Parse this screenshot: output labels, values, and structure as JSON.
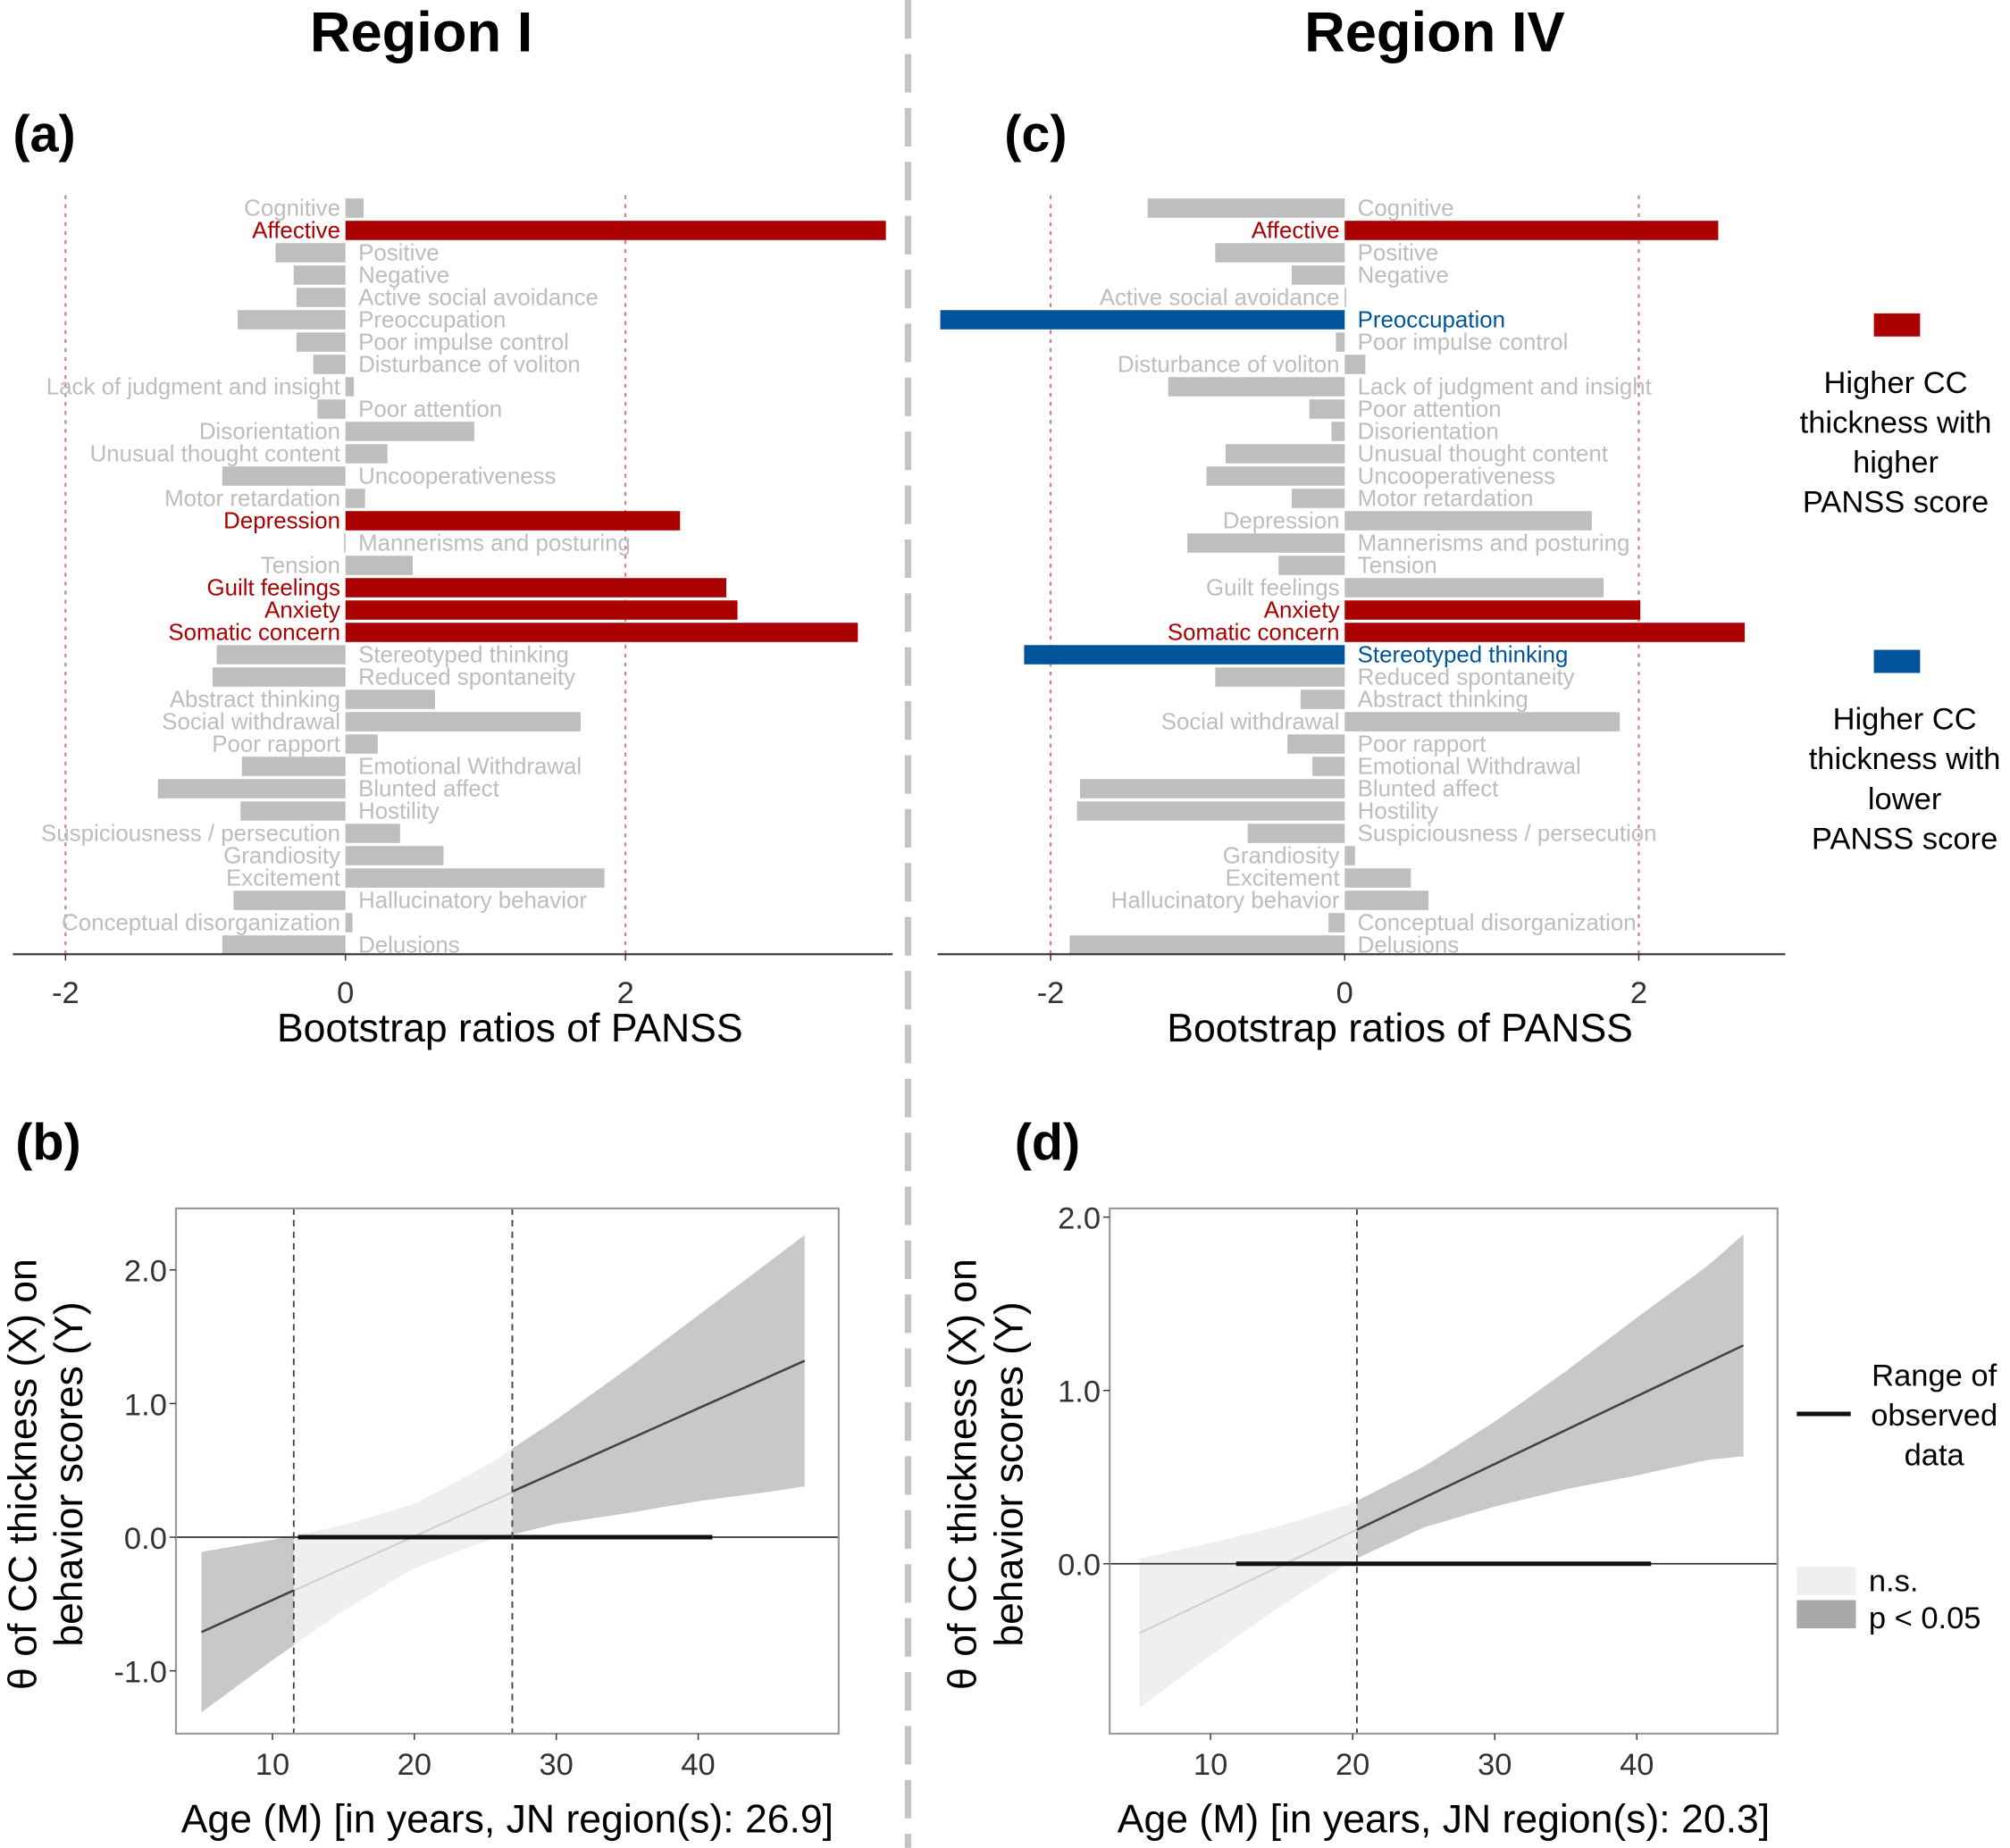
{
  "titles": {
    "left": "Region I",
    "right": "Region IV"
  },
  "colors": {
    "higher": "#aa0000",
    "lower": "#00559a",
    "neutral_bar": "#bebebe",
    "neutral_label": "#bdbdbd",
    "ns_band": "#efefef",
    "sig_band": "#c8c8c8"
  },
  "bar_legend": [
    {
      "key": "higher",
      "lines": [
        "Higher CC",
        "thickness with",
        "higher",
        "PANSS score"
      ]
    },
    {
      "key": "lower",
      "lines": [
        "Higher CC",
        "thickness with",
        "lower",
        "PANSS score"
      ]
    }
  ],
  "line_legend": {
    "range_lines": [
      "Range of",
      "observed",
      "data"
    ],
    "ns": "n.s.",
    "sig": "p < 0.05"
  },
  "chart_data": [
    {
      "type": "bar",
      "orientation": "horizontal",
      "panel": "(a)",
      "categories": [
        "Cognitive",
        "Affective",
        "Positive",
        "Negative",
        "Active social avoidance",
        "Preoccupation",
        "Poor impulse control",
        "Disturbance of voliton",
        "Lack of judgment and insight",
        "Poor attention",
        "Disorientation",
        "Unusual thought content",
        "Uncooperativeness",
        "Motor retardation",
        "Depression",
        "Mannerisms and posturing",
        "Tension",
        "Guilt feelings",
        "Anxiety",
        "Somatic concern",
        "Stereotyped thinking",
        "Reduced spontaneity",
        "Abstract thinking",
        "Social withdrawal",
        "Poor rapport",
        "Emotional Withdrawal",
        "Blunted affect",
        "Hostility",
        "Suspiciousness / persecution",
        "Grandiosity",
        "Excitement",
        "Hallucinatory behavior",
        "Conceptual disorganization",
        "Delusions"
      ],
      "values": [
        0.13,
        3.86,
        -0.5,
        -0.37,
        -0.35,
        -0.77,
        -0.35,
        -0.23,
        0.06,
        -0.2,
        0.92,
        0.3,
        -0.88,
        0.14,
        2.39,
        -0.01,
        0.48,
        2.72,
        2.8,
        3.66,
        -0.92,
        -0.95,
        0.64,
        1.68,
        0.23,
        -0.74,
        -1.34,
        -0.75,
        0.39,
        0.7,
        1.85,
        -0.8,
        0.05,
        -0.88
      ],
      "highlight": [
        null,
        "higher",
        null,
        null,
        null,
        null,
        null,
        null,
        null,
        null,
        null,
        null,
        null,
        null,
        "higher",
        null,
        null,
        "higher",
        "higher",
        "higher",
        null,
        null,
        null,
        null,
        null,
        null,
        null,
        null,
        null,
        null,
        null,
        null,
        null,
        null
      ],
      "xlabel": "Bootstrap ratios of PANSS",
      "xticks": [
        "-2",
        "0",
        "2"
      ],
      "reference_lines": [
        -2,
        2
      ],
      "xlim": [
        -2.4,
        3.9
      ]
    },
    {
      "type": "bar",
      "orientation": "horizontal",
      "panel": "(c)",
      "categories": [
        "Cognitive",
        "Affective",
        "Positive",
        "Negative",
        "Active social avoidance",
        "Preoccupation",
        "Poor impulse control",
        "Disturbance of voliton",
        "Lack of judgment and insight",
        "Poor attention",
        "Disorientation",
        "Unusual thought content",
        "Uncooperativeness",
        "Motor retardation",
        "Depression",
        "Mannerisms and posturing",
        "Tension",
        "Guilt feelings",
        "Anxiety",
        "Somatic concern",
        "Stereotyped thinking",
        "Reduced spontaneity",
        "Abstract thinking",
        "Social withdrawal",
        "Poor rapport",
        "Emotional Withdrawal",
        "Blunted affect",
        "Hostility",
        "Suspiciousness / persecution",
        "Grandiosity",
        "Excitement",
        "Hallucinatory behavior",
        "Conceptual disorganization",
        "Delusions"
      ],
      "values": [
        -1.34,
        2.54,
        -0.88,
        -0.36,
        0.01,
        -2.75,
        -0.06,
        0.14,
        -1.2,
        -0.24,
        -0.09,
        -0.81,
        -0.94,
        -0.36,
        1.68,
        -1.07,
        -0.45,
        1.76,
        2.01,
        2.72,
        -2.18,
        -0.88,
        -0.3,
        1.87,
        -0.39,
        -0.22,
        -1.8,
        -1.82,
        -0.66,
        0.07,
        0.45,
        0.57,
        -0.11,
        -1.87
      ],
      "highlight": [
        null,
        "higher",
        null,
        null,
        null,
        "lower",
        null,
        null,
        null,
        null,
        null,
        null,
        null,
        null,
        null,
        null,
        null,
        null,
        "higher",
        "higher",
        "lower",
        null,
        null,
        null,
        null,
        null,
        null,
        null,
        null,
        null,
        null,
        null,
        null,
        null
      ],
      "xlabel": "Bootstrap ratios of PANSS",
      "xticks": [
        "-2",
        "0",
        "2"
      ],
      "reference_lines": [
        -2,
        2
      ],
      "xlim": [
        -2.8,
        3.0
      ]
    },
    {
      "type": "line",
      "panel": "(b)",
      "x": [
        5,
        10,
        15,
        20,
        25,
        30,
        35,
        40,
        45,
        47.5
      ],
      "fit": [
        -0.71,
        -0.47,
        -0.23,
        0.01,
        0.25,
        0.49,
        0.72,
        0.96,
        1.2,
        1.32
      ],
      "lower": [
        -1.31,
        -0.92,
        -0.55,
        -0.23,
        -0.03,
        0.1,
        0.18,
        0.27,
        0.34,
        0.38
      ],
      "upper": [
        -0.11,
        -0.02,
        0.09,
        0.25,
        0.53,
        0.88,
        1.26,
        1.66,
        2.06,
        2.26
      ],
      "jn_points": [
        11.5,
        26.9
      ],
      "significant_ranges": [
        [
          5,
          11.5
        ],
        [
          26.9,
          47.5
        ]
      ],
      "observed_range": [
        11.8,
        41
      ],
      "xlabel": "Age (M) [in years, JN region(s): 26.9]",
      "ylabel_lines": [
        "θ of CC thickness (X) on",
        "behavior scores (Y)"
      ],
      "xticks": [
        10,
        20,
        30,
        40
      ],
      "yticks": [
        {
          "v": -1,
          "label": "-1.0"
        },
        {
          "v": 0,
          "label": "0.0"
        },
        {
          "v": 1,
          "label": "1.0"
        },
        {
          "v": 2,
          "label": "2.0"
        }
      ],
      "xlim": [
        3.2,
        49.9
      ],
      "ylim": [
        -1.47,
        2.46
      ]
    },
    {
      "type": "line",
      "panel": "(d)",
      "x": [
        5,
        10,
        15,
        20,
        25,
        30,
        35,
        40,
        45,
        47.5
      ],
      "fit": [
        -0.4,
        -0.205,
        -0.01,
        0.185,
        0.38,
        0.575,
        0.77,
        0.965,
        1.16,
        1.26
      ],
      "lower": [
        -0.83,
        -0.53,
        -0.24,
        0.02,
        0.21,
        0.33,
        0.43,
        0.51,
        0.6,
        0.62
      ],
      "upper": [
        0.03,
        0.12,
        0.22,
        0.35,
        0.56,
        0.82,
        1.11,
        1.42,
        1.72,
        1.9
      ],
      "jn_points": [
        20.3
      ],
      "significant_ranges": [
        [
          20.3,
          47.5
        ]
      ],
      "observed_range": [
        11.8,
        41
      ],
      "xlabel": "Age (M) [in years, JN region(s): 20.3]",
      "ylabel_lines": [
        "θ of CC thickness (X) on",
        "behavior scores (Y)"
      ],
      "xticks": [
        10,
        20,
        30,
        40
      ],
      "yticks": [
        {
          "v": 0,
          "label": "0.0"
        },
        {
          "v": 1,
          "label": "1.0"
        },
        {
          "v": 2,
          "label": "2.0"
        }
      ],
      "xlim": [
        2.9,
        49.9
      ],
      "ylim": [
        -0.98,
        2.05
      ]
    }
  ]
}
